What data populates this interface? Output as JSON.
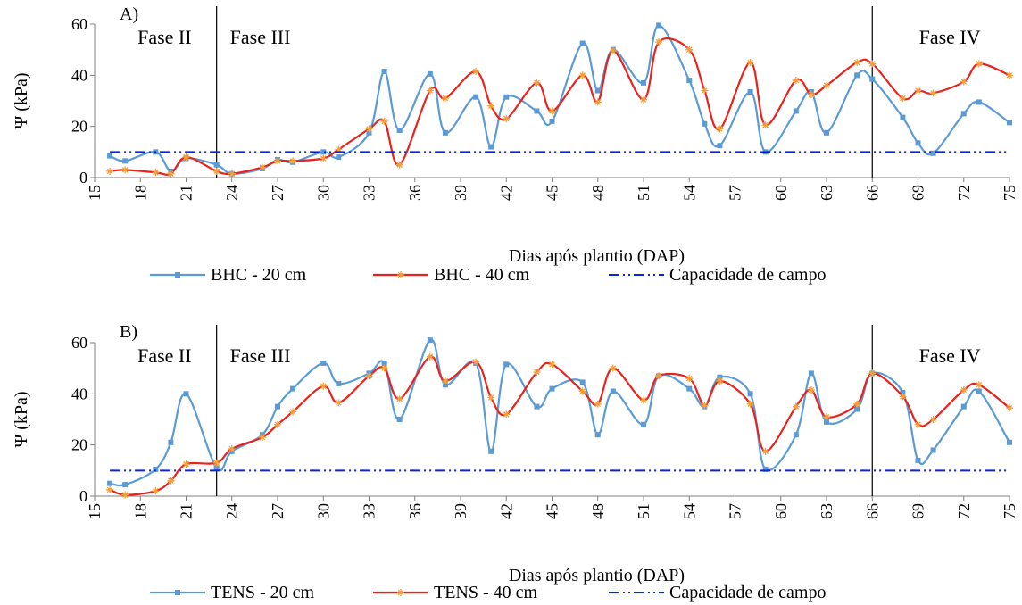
{
  "chart_data": [
    {
      "type": "line",
      "panel_label": "A)",
      "phases": [
        {
          "label": "Fase II",
          "position": "left"
        },
        {
          "label": "Fase III",
          "position": "after-first-divider"
        },
        {
          "label": "Fase IV",
          "position": "right"
        }
      ],
      "phase_dividers": [
        23,
        66
      ],
      "ylabel": "Ψ (kPa)",
      "xlabel": "Dias após plantio (DAP)",
      "xlim": [
        15,
        75
      ],
      "ylim": [
        0,
        60
      ],
      "xticks": [
        15,
        18,
        21,
        24,
        27,
        30,
        33,
        36,
        39,
        42,
        45,
        48,
        51,
        54,
        57,
        60,
        63,
        66,
        69,
        72,
        75
      ],
      "yticks": [
        0,
        20,
        40,
        60
      ],
      "grid": false,
      "legend_placement": "bottom",
      "series": [
        {
          "name": "BHC - 20 cm",
          "color": "#5b9bd5",
          "marker": "square",
          "x": [
            16,
            17,
            19,
            20,
            21,
            23,
            24,
            26,
            27,
            28,
            30,
            31,
            33,
            34,
            35,
            37,
            38,
            40,
            41,
            42,
            44,
            45,
            47,
            48,
            49,
            51,
            52,
            54,
            55,
            56,
            58,
            59,
            61,
            62,
            63,
            65,
            66,
            68,
            69,
            70,
            72,
            73,
            75
          ],
          "y": [
            8.5,
            6.5,
            10,
            2.5,
            7.5,
            5,
            1.5,
            3.5,
            7,
            6,
            10,
            8,
            17.5,
            41.5,
            18.5,
            40.5,
            17.5,
            31.5,
            12,
            31.5,
            26,
            22,
            52.5,
            34,
            50,
            37,
            59.5,
            38,
            21,
            12.5,
            33.5,
            10,
            26,
            33.5,
            17.5,
            40,
            38.5,
            23.5,
            13.5,
            9.5,
            25,
            29.5,
            21.5
          ]
        },
        {
          "name": "BHC - 40 cm",
          "color": "#e8231e",
          "marker": "star",
          "x": [
            16,
            17,
            19,
            20,
            21,
            23,
            24,
            26,
            27,
            28,
            30,
            31,
            33,
            34,
            35,
            37,
            38,
            40,
            41,
            42,
            44,
            45,
            47,
            48,
            49,
            51,
            52,
            54,
            55,
            56,
            58,
            59,
            61,
            62,
            63,
            65,
            66,
            68,
            69,
            70,
            72,
            73,
            75
          ],
          "y": [
            2.5,
            3,
            2,
            1.5,
            8,
            2.5,
            1.5,
            4,
            6.5,
            6.5,
            7.5,
            11,
            19,
            22,
            5,
            34,
            31,
            41.5,
            28,
            23,
            37,
            26,
            40,
            29.5,
            49.5,
            30.5,
            53,
            50,
            34,
            19,
            45,
            20.5,
            38,
            32.5,
            36,
            45,
            44.5,
            31,
            34,
            33,
            37.5,
            44.5,
            40
          ]
        },
        {
          "name": "Capacidade de campo",
          "color": "#0b23e0",
          "marker": "none",
          "line_style": "dash-dot-dot",
          "x": [
            16,
            75
          ],
          "y": [
            10,
            10
          ]
        }
      ]
    },
    {
      "type": "line",
      "panel_label": "B)",
      "phases": [
        {
          "label": "Fase II",
          "position": "left"
        },
        {
          "label": "Fase III",
          "position": "after-first-divider"
        },
        {
          "label": "Fase IV",
          "position": "right"
        }
      ],
      "phase_dividers": [
        23,
        66
      ],
      "ylabel": "Ψ (kPa)",
      "xlabel": "Dias após plantio (DAP)",
      "xlim": [
        15,
        75
      ],
      "ylim": [
        0,
        60
      ],
      "xticks": [
        15,
        18,
        21,
        24,
        27,
        30,
        33,
        36,
        39,
        42,
        45,
        48,
        51,
        54,
        57,
        60,
        63,
        66,
        69,
        72,
        75
      ],
      "yticks": [
        0,
        20,
        40,
        60
      ],
      "grid": false,
      "legend_placement": "bottom",
      "series": [
        {
          "name": "TENS - 20 cm",
          "color": "#5b9bd5",
          "marker": "square",
          "x": [
            16,
            17,
            19,
            20,
            21,
            23,
            24,
            26,
            27,
            28,
            30,
            31,
            33,
            34,
            35,
            37,
            38,
            40,
            41,
            42,
            44,
            45,
            47,
            48,
            49,
            51,
            52,
            54,
            55,
            56,
            58,
            59,
            61,
            62,
            63,
            65,
            66,
            68,
            69,
            70,
            72,
            73,
            75
          ],
          "y": [
            5,
            4.5,
            10.5,
            21,
            40,
            11,
            17.5,
            24,
            35,
            42,
            52,
            44,
            48,
            52,
            30,
            61,
            43.5,
            52,
            17.5,
            51.5,
            35,
            42,
            44.5,
            24,
            41,
            28,
            47,
            42,
            35,
            46.5,
            40,
            10.5,
            24,
            48,
            29,
            34,
            48,
            40.5,
            14,
            18,
            35,
            41,
            21
          ]
        },
        {
          "name": "TENS - 40 cm",
          "color": "#e8231e",
          "marker": "star",
          "x": [
            16,
            17,
            19,
            20,
            21,
            23,
            24,
            26,
            27,
            28,
            30,
            31,
            33,
            34,
            35,
            37,
            38,
            40,
            41,
            42,
            44,
            45,
            47,
            48,
            49,
            51,
            52,
            54,
            55,
            56,
            58,
            59,
            61,
            62,
            63,
            65,
            66,
            68,
            69,
            70,
            72,
            73,
            75
          ],
          "y": [
            2.5,
            0.5,
            2,
            6,
            12.5,
            13,
            18.5,
            23,
            28,
            33,
            43,
            36.5,
            47,
            50,
            38,
            54.5,
            45,
            52.5,
            38.5,
            32,
            48.5,
            51.5,
            41,
            36,
            50,
            37.5,
            47,
            46,
            35.5,
            45,
            36,
            17.5,
            35,
            41.5,
            31,
            36,
            48,
            39,
            28,
            30,
            41.5,
            43.5,
            34.5
          ]
        },
        {
          "name": "Capacidade de campo",
          "color": "#0b23e0",
          "marker": "none",
          "line_style": "dash-dot-dot",
          "x": [
            16,
            75
          ],
          "y": [
            10,
            10
          ]
        }
      ]
    }
  ]
}
